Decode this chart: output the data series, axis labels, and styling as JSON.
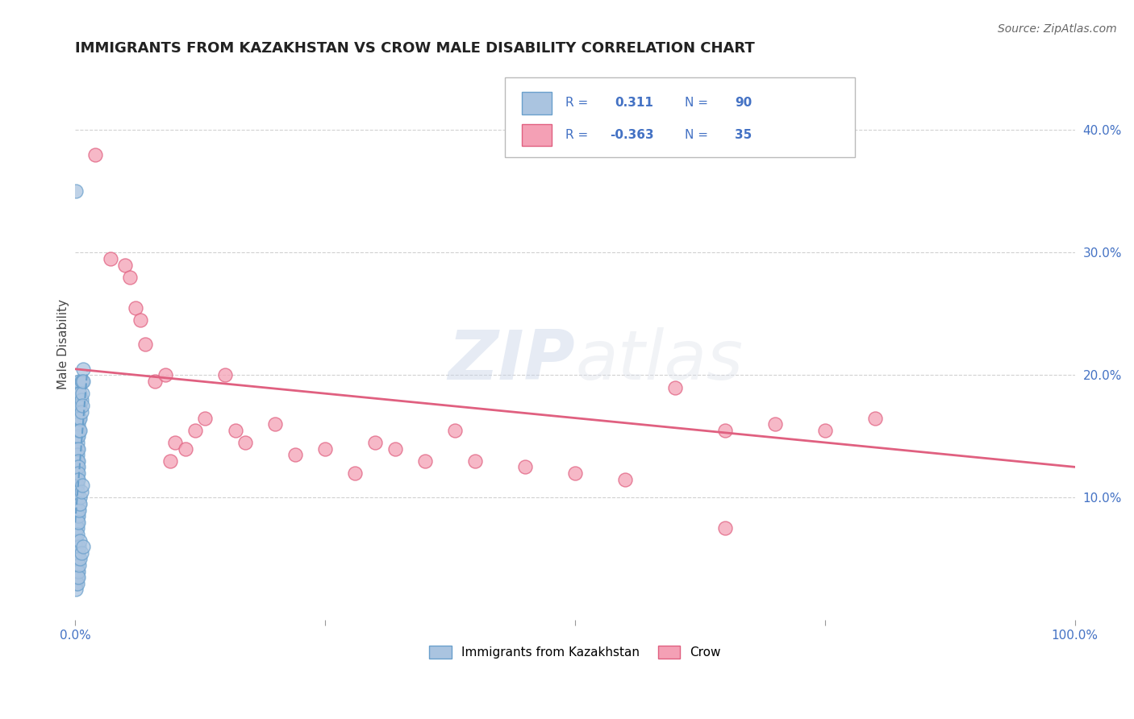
{
  "title": "IMMIGRANTS FROM KAZAKHSTAN VS CROW MALE DISABILITY CORRELATION CHART",
  "source": "Source: ZipAtlas.com",
  "ylabel": "Male Disability",
  "xlim": [
    0.0,
    1.0
  ],
  "ylim": [
    0.0,
    0.45
  ],
  "ytick_positions": [
    0.1,
    0.2,
    0.3,
    0.4
  ],
  "ytick_labels": [
    "10.0%",
    "20.0%",
    "30.0%",
    "40.0%"
  ],
  "grid_color": "#cccccc",
  "background_color": "#ffffff",
  "blue_color": "#aac4e0",
  "pink_color": "#f4a0b5",
  "blue_line_color": "#6aa0cc",
  "pink_line_color": "#e06080",
  "axis_label_color": "#4472c4",
  "R_blue": "0.311",
  "N_blue": "90",
  "R_pink": "-0.363",
  "N_pink": "35",
  "legend_label_blue": "Immigrants from Kazakhstan",
  "legend_label_pink": "Crow",
  "watermark_zip": "ZIP",
  "watermark_atlas": "atlas",
  "blue_scatter_x": [
    0.001,
    0.001,
    0.001,
    0.001,
    0.001,
    0.001,
    0.001,
    0.001,
    0.001,
    0.001,
    0.001,
    0.002,
    0.002,
    0.002,
    0.002,
    0.002,
    0.002,
    0.002,
    0.002,
    0.002,
    0.002,
    0.002,
    0.002,
    0.002,
    0.002,
    0.003,
    0.003,
    0.003,
    0.003,
    0.003,
    0.003,
    0.003,
    0.003,
    0.004,
    0.004,
    0.004,
    0.004,
    0.004,
    0.005,
    0.005,
    0.005,
    0.005,
    0.006,
    0.006,
    0.006,
    0.007,
    0.007,
    0.007,
    0.008,
    0.008,
    0.001,
    0.001,
    0.001,
    0.001,
    0.001,
    0.001,
    0.001,
    0.002,
    0.002,
    0.002,
    0.002,
    0.003,
    0.003,
    0.003,
    0.004,
    0.004,
    0.005,
    0.005,
    0.006,
    0.007,
    0.001,
    0.001,
    0.001,
    0.002,
    0.002,
    0.002,
    0.003,
    0.003,
    0.004,
    0.005,
    0.001,
    0.001,
    0.002,
    0.002,
    0.003,
    0.003,
    0.004,
    0.005,
    0.006,
    0.008
  ],
  "blue_scatter_y": [
    0.35,
    0.135,
    0.125,
    0.12,
    0.115,
    0.11,
    0.105,
    0.1,
    0.095,
    0.09,
    0.085,
    0.175,
    0.165,
    0.155,
    0.15,
    0.145,
    0.14,
    0.135,
    0.13,
    0.125,
    0.12,
    0.115,
    0.11,
    0.105,
    0.1,
    0.17,
    0.16,
    0.15,
    0.14,
    0.13,
    0.125,
    0.12,
    0.115,
    0.195,
    0.185,
    0.175,
    0.165,
    0.155,
    0.185,
    0.175,
    0.165,
    0.155,
    0.195,
    0.18,
    0.17,
    0.195,
    0.185,
    0.175,
    0.205,
    0.195,
    0.08,
    0.075,
    0.07,
    0.065,
    0.06,
    0.055,
    0.05,
    0.085,
    0.08,
    0.075,
    0.07,
    0.09,
    0.085,
    0.08,
    0.095,
    0.09,
    0.1,
    0.095,
    0.105,
    0.11,
    0.045,
    0.04,
    0.035,
    0.05,
    0.045,
    0.04,
    0.055,
    0.05,
    0.06,
    0.065,
    0.03,
    0.025,
    0.035,
    0.03,
    0.04,
    0.035,
    0.045,
    0.05,
    0.055,
    0.06
  ],
  "pink_scatter_x": [
    0.02,
    0.035,
    0.05,
    0.055,
    0.06,
    0.065,
    0.07,
    0.08,
    0.09,
    0.095,
    0.1,
    0.11,
    0.12,
    0.13,
    0.15,
    0.16,
    0.17,
    0.2,
    0.22,
    0.25,
    0.28,
    0.3,
    0.32,
    0.35,
    0.38,
    0.4,
    0.45,
    0.5,
    0.55,
    0.6,
    0.65,
    0.7,
    0.75,
    0.8,
    0.65
  ],
  "pink_scatter_y": [
    0.38,
    0.295,
    0.29,
    0.28,
    0.255,
    0.245,
    0.225,
    0.195,
    0.2,
    0.13,
    0.145,
    0.14,
    0.155,
    0.165,
    0.2,
    0.155,
    0.145,
    0.16,
    0.135,
    0.14,
    0.12,
    0.145,
    0.14,
    0.13,
    0.155,
    0.13,
    0.125,
    0.12,
    0.115,
    0.19,
    0.075,
    0.16,
    0.155,
    0.165,
    0.155
  ],
  "blue_trendline_x": [
    0.0,
    0.012
  ],
  "pink_trendline_x": [
    0.0,
    1.0
  ],
  "pink_trendline_y": [
    0.205,
    0.125
  ]
}
